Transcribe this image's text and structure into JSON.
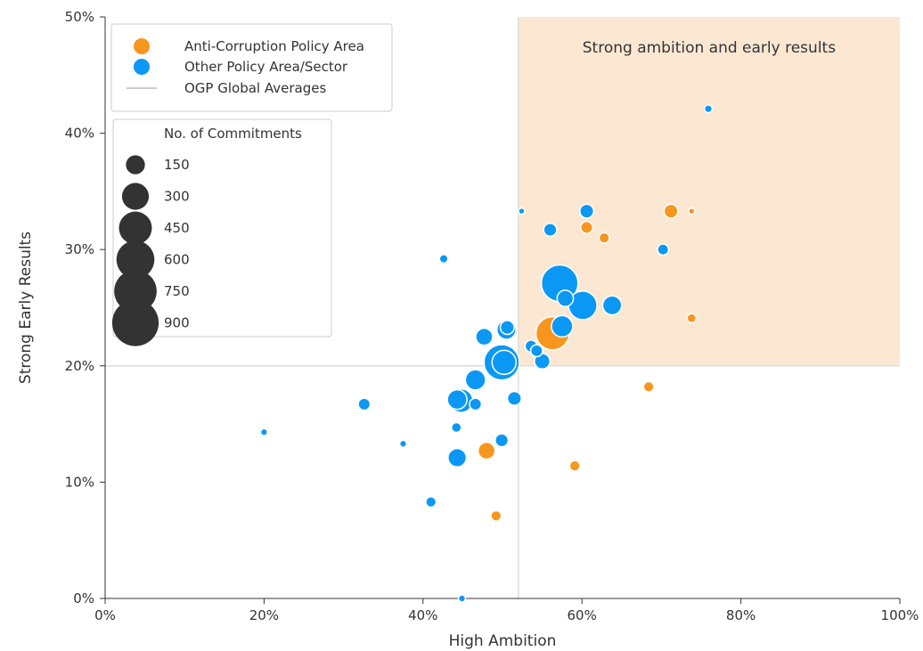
{
  "chart_data": {
    "type": "scatter",
    "title": "",
    "xlabel": "High Ambition",
    "ylabel": "Strong Early Results",
    "xlim": [
      0,
      100
    ],
    "ylim": [
      0,
      50
    ],
    "x_ticks": [
      "0%",
      "20%",
      "40%",
      "60%",
      "80%",
      "100%"
    ],
    "y_ticks": [
      "0%",
      "10%",
      "20%",
      "30%",
      "40%",
      "50%"
    ],
    "x_tick_values": [
      0,
      20,
      40,
      60,
      80,
      100
    ],
    "y_tick_values": [
      0,
      10,
      20,
      30,
      40,
      50
    ],
    "highlight_region": {
      "label": "Strong ambition and early results",
      "x_min": 52,
      "x_max": 100,
      "y_min": 20,
      "y_max": 50,
      "color": "#fce8d2"
    },
    "reference_lines": {
      "label": "OGP Global Averages",
      "x": 52,
      "y": 20,
      "color": "#dddddd"
    },
    "legend": {
      "placement": "top-left",
      "entries": [
        {
          "label": "Anti-Corruption Policy Area",
          "color": "#f7961e"
        },
        {
          "label": "Other Policy Area/Sector",
          "color": "#0b98f5"
        },
        {
          "label": "OGP Global Averages",
          "color": "#cccccc"
        }
      ]
    },
    "size_legend": {
      "title": "No. of Commitments",
      "values": [
        150,
        300,
        450,
        600,
        750,
        900
      ],
      "labels": [
        "150",
        "300",
        "450",
        "600",
        "750",
        "900"
      ],
      "color": "#333333"
    },
    "series": [
      {
        "name": "Anti-Corruption Policy Area",
        "color": "#f7961e",
        "points": [
          {
            "x": 71.2,
            "y": 33.3,
            "n": 80
          },
          {
            "x": 73.8,
            "y": 33.3,
            "n": 15
          },
          {
            "x": 60.6,
            "y": 31.9,
            "n": 60
          },
          {
            "x": 62.8,
            "y": 31.0,
            "n": 45
          },
          {
            "x": 73.8,
            "y": 24.1,
            "n": 35
          },
          {
            "x": 56.3,
            "y": 22.8,
            "n": 460
          },
          {
            "x": 68.4,
            "y": 18.2,
            "n": 45
          },
          {
            "x": 48.0,
            "y": 12.7,
            "n": 120
          },
          {
            "x": 59.1,
            "y": 11.4,
            "n": 45
          },
          {
            "x": 49.2,
            "y": 7.1,
            "n": 45
          }
        ]
      },
      {
        "name": "Other Policy Area/Sector",
        "color": "#0b98f5",
        "points": [
          {
            "x": 75.9,
            "y": 42.1,
            "n": 25
          },
          {
            "x": 52.4,
            "y": 33.3,
            "n": 15
          },
          {
            "x": 60.6,
            "y": 33.3,
            "n": 80
          },
          {
            "x": 56.0,
            "y": 31.7,
            "n": 70
          },
          {
            "x": 70.2,
            "y": 30.0,
            "n": 50
          },
          {
            "x": 42.6,
            "y": 29.2,
            "n": 30
          },
          {
            "x": 57.2,
            "y": 27.1,
            "n": 560
          },
          {
            "x": 57.9,
            "y": 25.8,
            "n": 110
          },
          {
            "x": 60.1,
            "y": 25.2,
            "n": 340
          },
          {
            "x": 63.8,
            "y": 25.2,
            "n": 150
          },
          {
            "x": 57.5,
            "y": 23.4,
            "n": 190
          },
          {
            "x": 50.5,
            "y": 23.1,
            "n": 150
          },
          {
            "x": 50.6,
            "y": 23.3,
            "n": 80
          },
          {
            "x": 47.7,
            "y": 22.5,
            "n": 120
          },
          {
            "x": 53.6,
            "y": 21.7,
            "n": 60
          },
          {
            "x": 54.3,
            "y": 21.3,
            "n": 60
          },
          {
            "x": 49.9,
            "y": 20.3,
            "n": 520
          },
          {
            "x": 50.2,
            "y": 20.3,
            "n": 240
          },
          {
            "x": 55.0,
            "y": 20.4,
            "n": 100
          },
          {
            "x": 46.6,
            "y": 18.8,
            "n": 170
          },
          {
            "x": 51.5,
            "y": 17.2,
            "n": 80
          },
          {
            "x": 44.3,
            "y": 17.1,
            "n": 160
          },
          {
            "x": 44.8,
            "y": 17.0,
            "n": 230
          },
          {
            "x": 46.6,
            "y": 16.7,
            "n": 60
          },
          {
            "x": 32.6,
            "y": 16.7,
            "n": 60
          },
          {
            "x": 20.0,
            "y": 14.3,
            "n": 20
          },
          {
            "x": 44.2,
            "y": 14.7,
            "n": 40
          },
          {
            "x": 49.9,
            "y": 13.6,
            "n": 70
          },
          {
            "x": 37.5,
            "y": 13.3,
            "n": 20
          },
          {
            "x": 44.3,
            "y": 12.1,
            "n": 140
          },
          {
            "x": 41.0,
            "y": 8.3,
            "n": 45
          },
          {
            "x": 44.9,
            "y": 0.0,
            "n": 20
          }
        ]
      }
    ]
  }
}
